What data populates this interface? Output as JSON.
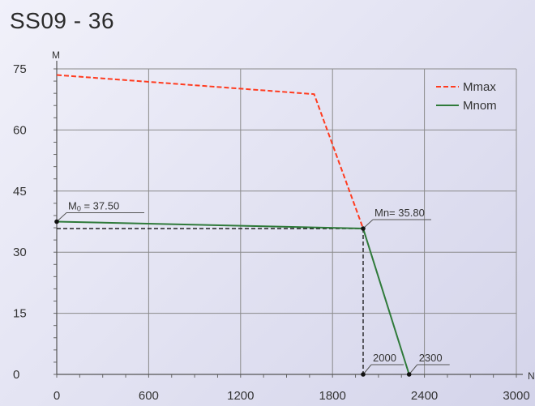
{
  "chart_data": {
    "type": "line",
    "title": "SS09 - 36",
    "xlabel": "N",
    "ylabel": "M",
    "xlim": [
      0,
      3000
    ],
    "ylim": [
      0,
      75
    ],
    "x_ticks": [
      0,
      600,
      1200,
      1800,
      2400,
      3000
    ],
    "y_ticks": [
      0,
      15,
      30,
      45,
      60,
      75
    ],
    "grid": true,
    "legend_position": "top-right",
    "series": [
      {
        "name": "Mmax",
        "color": "#ff3b1f",
        "dash": "dashed",
        "x": [
          0,
          1680,
          2000
        ],
        "y": [
          73.5,
          68.8,
          35.8
        ]
      },
      {
        "name": "Mnom",
        "color": "#2f7a3a",
        "dash": "solid",
        "x": [
          0,
          2000,
          2300
        ],
        "y": [
          37.5,
          35.8,
          0
        ]
      }
    ],
    "reference_lines": [
      {
        "from": [
          0,
          35.8
        ],
        "to": [
          2000,
          35.8
        ]
      },
      {
        "from": [
          2000,
          35.8
        ],
        "to": [
          2000,
          0
        ]
      }
    ],
    "annotations": [
      {
        "label": "M0 = 37.50",
        "main": "M",
        "sub": "0",
        "rest": " = 37.50",
        "x": 0,
        "y": 37.5
      },
      {
        "label": "Mn= 35.80",
        "x": 2000,
        "y": 35.8
      },
      {
        "label": "2000",
        "x": 2000,
        "y": 0
      },
      {
        "label": "2300",
        "x": 2300,
        "y": 0
      }
    ]
  }
}
